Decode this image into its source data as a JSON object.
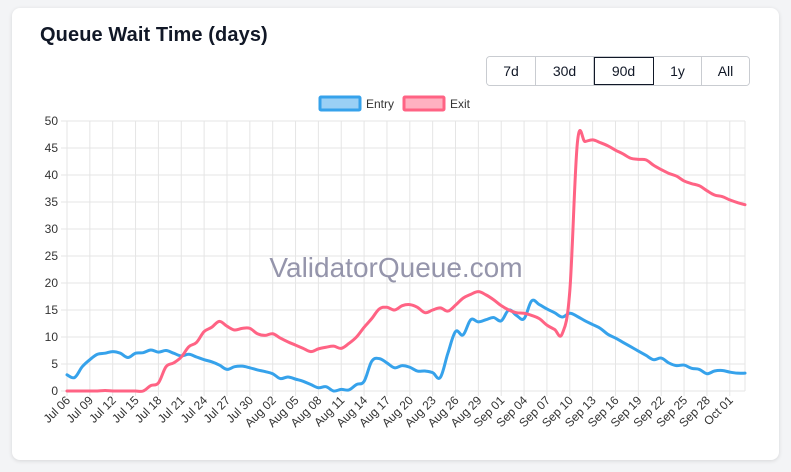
{
  "card": {
    "title": "Queue Wait Time (days)"
  },
  "range_selector": {
    "options": [
      "7d",
      "30d",
      "90d",
      "1y",
      "All"
    ],
    "selected": "90d"
  },
  "watermark": "ValidatorQueue.com",
  "colors": {
    "entry": "#36a2eb",
    "entry_fill": "#9ad0f5",
    "exit": "#ff6384",
    "exit_fill": "#ffb1c1",
    "grid": "#e5e5e5",
    "tick": "#333333",
    "watermark": "#8a8aa3"
  },
  "chart_data": {
    "type": "line",
    "title": "",
    "xlabel": "",
    "ylabel": "",
    "ylim": [
      0,
      50
    ],
    "yticks": [
      0,
      5,
      10,
      15,
      20,
      25,
      30,
      35,
      40,
      45,
      50
    ],
    "x_ticks": [
      "Jul 06",
      "Jul 09",
      "Jul 12",
      "Jul 15",
      "Jul 18",
      "Jul 21",
      "Jul 24",
      "Jul 27",
      "Jul 30",
      "Aug 02",
      "Aug 05",
      "Aug 08",
      "Aug 11",
      "Aug 14",
      "Aug 17",
      "Aug 20",
      "Aug 23",
      "Aug 26",
      "Aug 29",
      "Sep 01",
      "Sep 04",
      "Sep 07",
      "Sep 10",
      "Sep 13",
      "Sep 16",
      "Sep 19",
      "Sep 22",
      "Sep 25",
      "Sep 28",
      "Oct 01"
    ],
    "legend_position": "top",
    "grid": true,
    "series": [
      {
        "name": "Entry",
        "values": [
          3,
          2.5,
          4.5,
          5.8,
          6.8,
          7,
          7.3,
          7,
          6.2,
          7,
          7.1,
          7.6,
          7.2,
          7.5,
          7,
          6.5,
          6.8,
          6.3,
          5.8,
          5.4,
          4.8,
          4,
          4.5,
          4.6,
          4.3,
          3.9,
          3.6,
          3.2,
          2.3,
          2.6,
          2.2,
          1.8,
          1.2,
          0.6,
          0.8,
          0,
          0.3,
          0.2,
          1.2,
          1.8,
          5.5,
          6,
          5.2,
          4.3,
          4.7,
          4.4,
          3.7,
          3.7,
          3.4,
          2.5,
          7,
          11,
          10.4,
          13.2,
          12.8,
          13.2,
          13.6,
          13,
          15,
          14,
          13.4,
          16.7,
          16,
          15.2,
          14.5,
          13.7,
          14.4,
          13.8,
          13,
          12.3,
          11.6,
          10.5,
          9.8,
          9,
          8.2,
          7.4,
          6.6,
          5.8,
          6.1,
          5.2,
          4.7,
          4.8,
          4.2,
          4,
          3.2,
          3.7,
          3.8,
          3.5,
          3.3,
          3.3
        ]
      },
      {
        "name": "Exit",
        "values": [
          0,
          0,
          0,
          0,
          0,
          0.1,
          0,
          0,
          0,
          0,
          0,
          1,
          1.5,
          4.5,
          5.2,
          6.3,
          8.2,
          9,
          11,
          11.8,
          12.9,
          12,
          11.3,
          11.6,
          11.6,
          10.6,
          10.3,
          10.6,
          9.8,
          9.1,
          8.5,
          7.9,
          7.3,
          7.8,
          8.1,
          8.3,
          7.9,
          8.8,
          10,
          11.8,
          13.4,
          15.2,
          15.5,
          15,
          15.8,
          16,
          15.5,
          14.5,
          15,
          15.4,
          14.8,
          15.9,
          17.2,
          17.9,
          18.4,
          17.8,
          16.9,
          15.8,
          15,
          14.5,
          14.4,
          14,
          13.4,
          12.2,
          11.4,
          10.6,
          18.5,
          46,
          46.2,
          46.5,
          46,
          45.4,
          44.6,
          43.9,
          43.1,
          42.9,
          42.8,
          41.8,
          41,
          40.3,
          39.8,
          38.9,
          38.4,
          38,
          37.1,
          36.3,
          36,
          35.4,
          34.9,
          34.5
        ]
      }
    ]
  }
}
